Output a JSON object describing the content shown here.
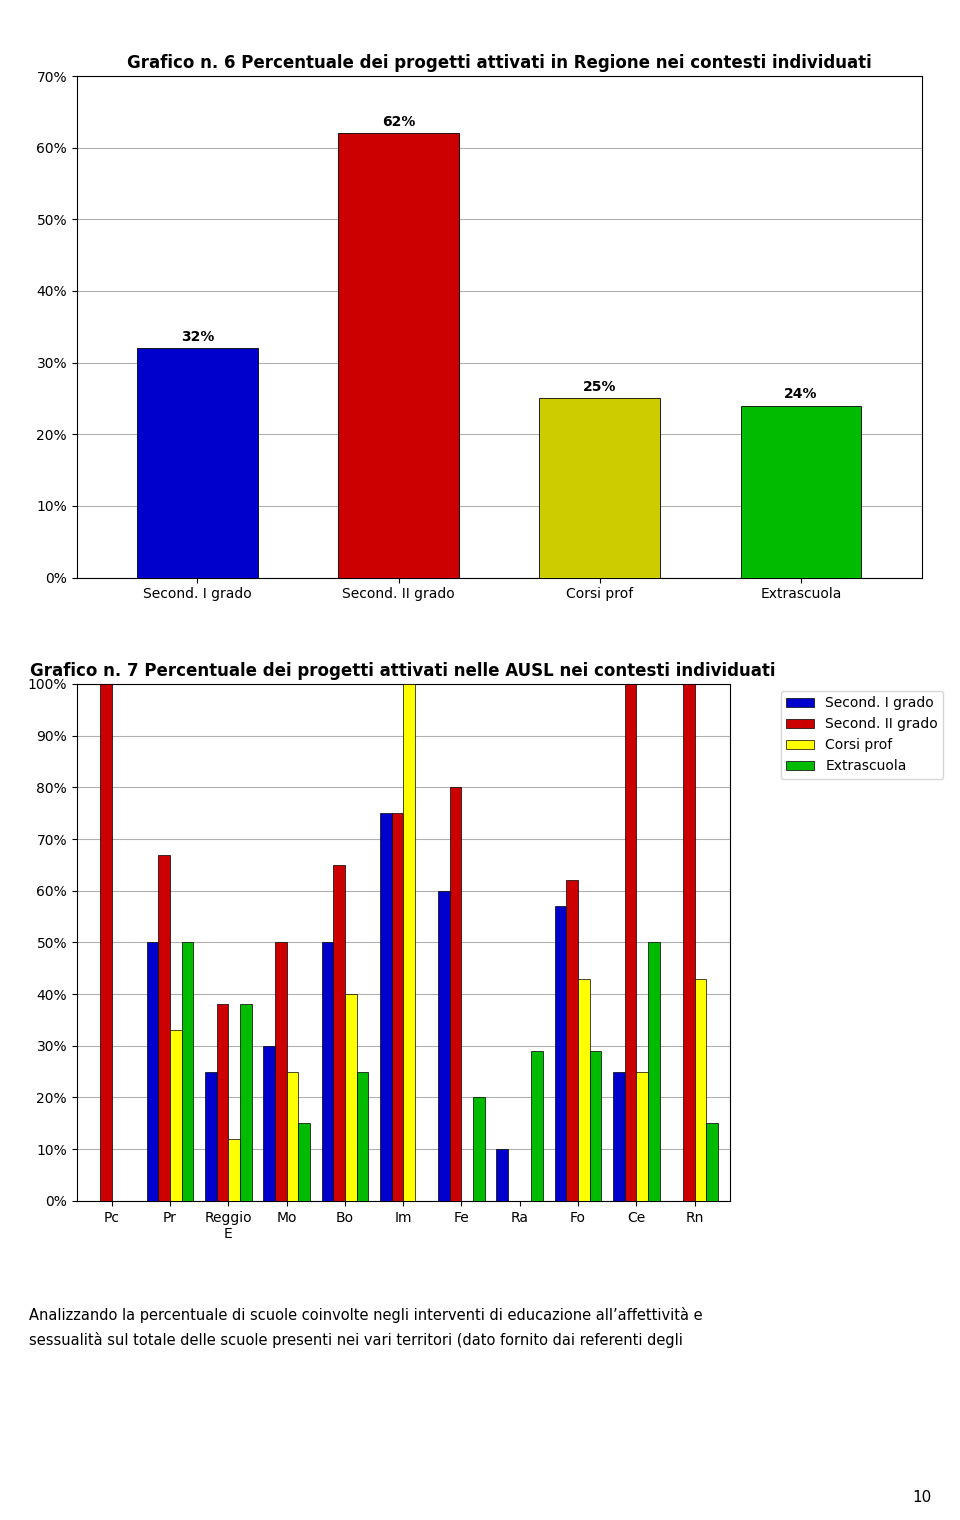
{
  "chart_data": [
    {
      "type": "bar",
      "title": "Grafico n. 6 Percentuale dei progetti attivati in Regione nei contesti individuati",
      "categories": [
        "Second. I grado",
        "Second. II grado",
        "Corsi prof",
        "Extrascuola"
      ],
      "values": [
        32,
        62,
        25,
        24
      ],
      "value_labels": [
        "32%",
        "62%",
        "25%",
        "24%"
      ],
      "colors": [
        "#0000CC",
        "#CC0000",
        "#CCCC00",
        "#00BB00"
      ],
      "ylim": [
        0,
        70
      ],
      "yticks": [
        {
          "value": 0,
          "label": "0%"
        },
        {
          "value": 10,
          "label": "10%"
        },
        {
          "value": 20,
          "label": "20%"
        },
        {
          "value": 30,
          "label": "30%"
        },
        {
          "value": 40,
          "label": "40%"
        },
        {
          "value": 50,
          "label": "50%"
        },
        {
          "value": 60,
          "label": "60%"
        },
        {
          "value": 70,
          "label": "70%"
        }
      ],
      "grid": true,
      "data_labels": true
    },
    {
      "type": "bar",
      "title": "Grafico n. 7 Percentuale dei progetti attivati nelle AUSL nei contesti individuati",
      "categories": [
        "Pc",
        "Pr",
        "Reggio\nE",
        "Mo",
        "Bo",
        "Im",
        "Fe",
        "Ra",
        "Fo",
        "Ce",
        "Rn"
      ],
      "series": [
        {
          "name": "Second. I grado",
          "color": "#0000CC",
          "values": [
            0,
            50,
            25,
            30,
            50,
            75,
            60,
            10,
            57,
            25,
            0
          ]
        },
        {
          "name": "Second. II grado",
          "color": "#CC0000",
          "values": [
            100,
            67,
            38,
            50,
            65,
            75,
            80,
            0,
            62,
            100,
            100
          ]
        },
        {
          "name": "Corsi prof",
          "color": "#FFFF00",
          "values": [
            0,
            33,
            12,
            25,
            40,
            100,
            0,
            0,
            43,
            25,
            43
          ]
        },
        {
          "name": "Extrascuola",
          "color": "#00BB00",
          "values": [
            0,
            50,
            38,
            15,
            25,
            0,
            20,
            29,
            29,
            50,
            15
          ]
        }
      ],
      "ylim": [
        0,
        100
      ],
      "yticks": [
        {
          "value": 0,
          "label": "0%"
        },
        {
          "value": 10,
          "label": "10%"
        },
        {
          "value": 20,
          "label": "20%"
        },
        {
          "value": 30,
          "label": "30%"
        },
        {
          "value": 40,
          "label": "40%"
        },
        {
          "value": 50,
          "label": "50%"
        },
        {
          "value": 60,
          "label": "60%"
        },
        {
          "value": 70,
          "label": "70%"
        },
        {
          "value": 80,
          "label": "80%"
        },
        {
          "value": 90,
          "label": "90%"
        },
        {
          "value": 100,
          "label": "100%"
        }
      ],
      "grid": true,
      "legend": "upper right"
    }
  ],
  "annotations": [
    "Analizzando la percentuale di scuole coinvolte negli interventi di educazione all’affettività e",
    "sessualità sul totale delle scuole presenti nei vari territori (dato fornito dai referenti degli"
  ],
  "page_number": "10"
}
